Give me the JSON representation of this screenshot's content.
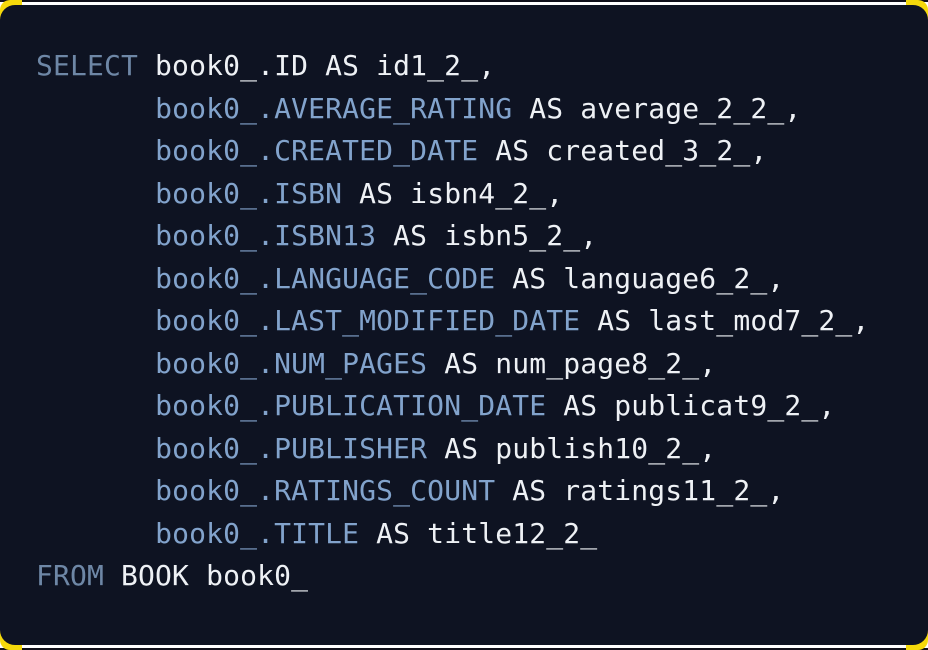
{
  "page": {
    "background_color": "#ffffff",
    "edge_line_color": "#10101a"
  },
  "card": {
    "background_color": "#0e1322",
    "corner_accent_color": "#f5d90b"
  },
  "code": {
    "language": "sql",
    "colors": {
      "keyword": "#6e87a6",
      "column": "#82a3cc",
      "plain": "#eef1f5"
    },
    "lines": [
      [
        {
          "text": "SELECT",
          "role": "keyword"
        },
        {
          "text": " book0_.ID AS id1_2_,",
          "role": "plain"
        }
      ],
      [
        {
          "text": "       ",
          "role": "plain"
        },
        {
          "text": "book0_.AVERAGE_RATING",
          "role": "column"
        },
        {
          "text": " AS average_2_2_,",
          "role": "plain"
        }
      ],
      [
        {
          "text": "       ",
          "role": "plain"
        },
        {
          "text": "book0_.CREATED_DATE",
          "role": "column"
        },
        {
          "text": " AS created_3_2_,",
          "role": "plain"
        }
      ],
      [
        {
          "text": "       ",
          "role": "plain"
        },
        {
          "text": "book0_.ISBN",
          "role": "column"
        },
        {
          "text": " AS isbn4_2_,",
          "role": "plain"
        }
      ],
      [
        {
          "text": "       ",
          "role": "plain"
        },
        {
          "text": "book0_.ISBN13",
          "role": "column"
        },
        {
          "text": " AS isbn5_2_,",
          "role": "plain"
        }
      ],
      [
        {
          "text": "       ",
          "role": "plain"
        },
        {
          "text": "book0_.LANGUAGE_CODE",
          "role": "column"
        },
        {
          "text": " AS language6_2_,",
          "role": "plain"
        }
      ],
      [
        {
          "text": "       ",
          "role": "plain"
        },
        {
          "text": "book0_.LAST_MODIFIED_DATE",
          "role": "column"
        },
        {
          "text": " AS last_mod7_2_,",
          "role": "plain"
        }
      ],
      [
        {
          "text": "       ",
          "role": "plain"
        },
        {
          "text": "book0_.NUM_PAGES",
          "role": "column"
        },
        {
          "text": " AS num_page8_2_,",
          "role": "plain"
        }
      ],
      [
        {
          "text": "       ",
          "role": "plain"
        },
        {
          "text": "book0_.PUBLICATION_DATE",
          "role": "column"
        },
        {
          "text": " AS publicat9_2_,",
          "role": "plain"
        }
      ],
      [
        {
          "text": "       ",
          "role": "plain"
        },
        {
          "text": "book0_.PUBLISHER",
          "role": "column"
        },
        {
          "text": " AS publish10_2_,",
          "role": "plain"
        }
      ],
      [
        {
          "text": "       ",
          "role": "plain"
        },
        {
          "text": "book0_.RATINGS_COUNT",
          "role": "column"
        },
        {
          "text": " AS ratings11_2_,",
          "role": "plain"
        }
      ],
      [
        {
          "text": "       ",
          "role": "plain"
        },
        {
          "text": "book0_.TITLE",
          "role": "column"
        },
        {
          "text": " AS title12_2_",
          "role": "plain"
        }
      ],
      [
        {
          "text": "FROM",
          "role": "keyword"
        },
        {
          "text": " BOOK book0_",
          "role": "plain"
        }
      ]
    ]
  }
}
